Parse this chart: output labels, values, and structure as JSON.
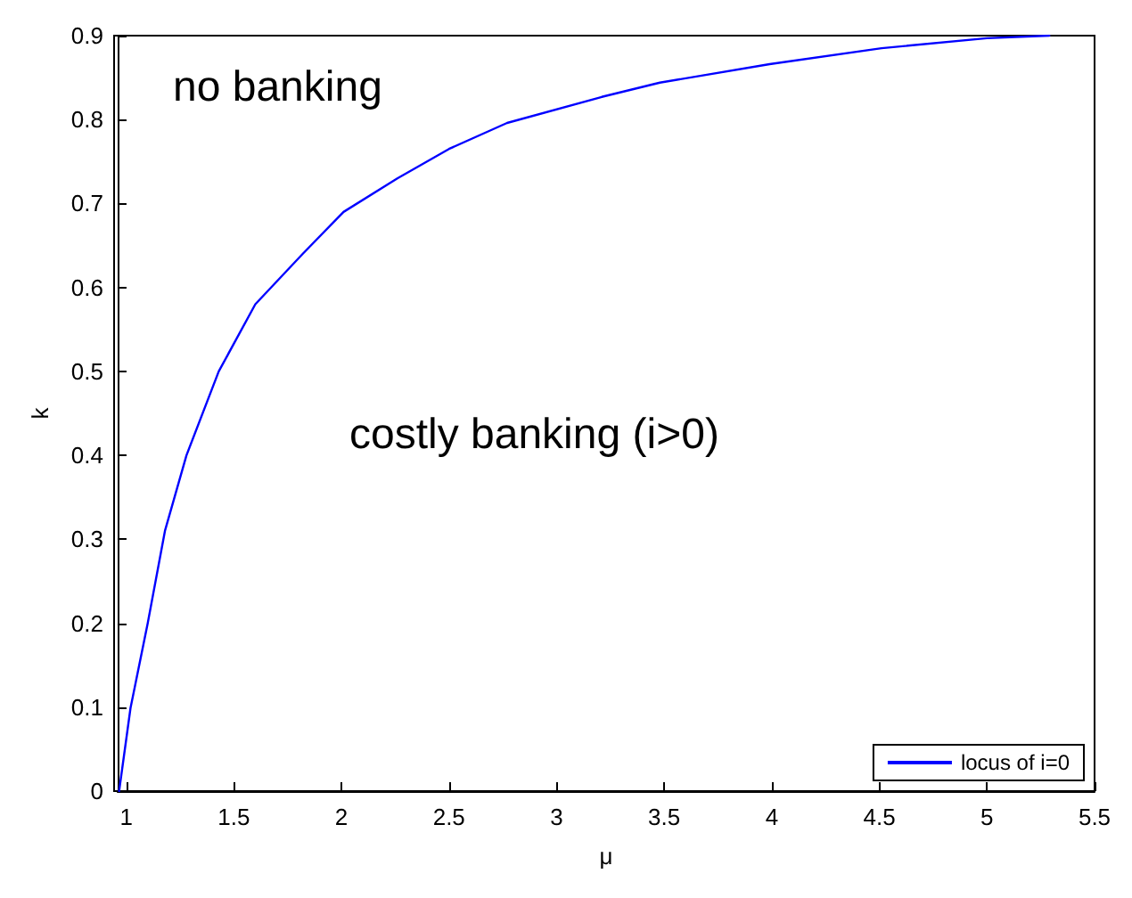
{
  "chart_data": {
    "type": "line",
    "xlabel": "μ",
    "ylabel": "k",
    "xlim": [
      0.96,
      5.5
    ],
    "ylim": [
      0,
      0.9
    ],
    "xticks": [
      1,
      1.5,
      2,
      2.5,
      3,
      3.5,
      4,
      4.5,
      5,
      5.5
    ],
    "yticks": [
      0,
      0.1,
      0.2,
      0.3,
      0.4,
      0.5,
      0.6,
      0.7,
      0.8,
      0.9
    ],
    "grid": false,
    "legend": "bottom right",
    "marker": "none",
    "line_style": "solid",
    "annotations": [
      "no banking",
      "costly banking (i>0)"
    ],
    "series": [
      {
        "name": "locus of i=0",
        "color": "#0000ff",
        "x": [
          0.967,
          1.02,
          1.1,
          1.18,
          1.28,
          1.43,
          1.6,
          1.82,
          2.01,
          2.26,
          2.5,
          2.77,
          3.21,
          3.48,
          3.99,
          4.51,
          5.0,
          5.29
        ],
        "values": [
          0,
          0.099,
          0.2,
          0.31,
          0.4,
          0.5,
          0.58,
          0.64,
          0.69,
          0.73,
          0.765,
          0.796,
          0.827,
          0.844,
          0.866,
          0.885,
          0.897,
          0.9
        ]
      }
    ]
  }
}
